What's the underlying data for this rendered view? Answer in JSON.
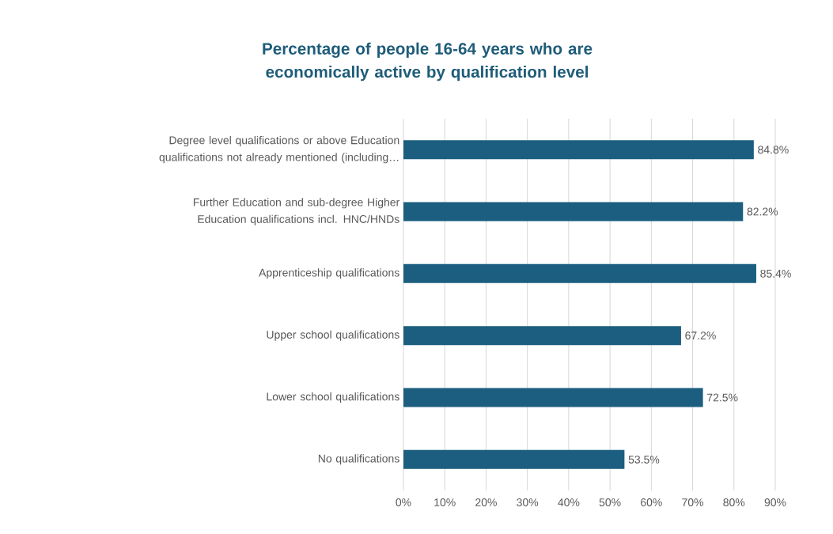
{
  "chart_data": {
    "type": "bar",
    "orientation": "horizontal",
    "title": "Percentage of people 16-64 years who are economically active by qualification level",
    "categories": [
      "Degree level qualifications or above Education qualifications not already mentioned (including…",
      "Further Education and sub-degree Higher Education qualifications incl. HNC/HNDs",
      "Apprenticeship qualifications",
      "Upper school qualifications",
      "Lower school qualifications",
      "No qualifications"
    ],
    "values": [
      84.8,
      82.2,
      85.4,
      67.2,
      72.5,
      53.5
    ],
    "value_labels": [
      "84.8%",
      "82.2%",
      "85.4%",
      "67.2%",
      "72.5%",
      "53.5%"
    ],
    "color": "#1b5e7f",
    "xlim": [
      0,
      90
    ],
    "xticks": [
      {
        "value": 0,
        "label": "0%"
      },
      {
        "value": 10,
        "label": "10%"
      },
      {
        "value": 20,
        "label": "20%"
      },
      {
        "value": 30,
        "label": "30%"
      },
      {
        "value": 40,
        "label": "40%"
      },
      {
        "value": 50,
        "label": "50%"
      },
      {
        "value": 60,
        "label": "60%"
      },
      {
        "value": 70,
        "label": "70%"
      },
      {
        "value": 80,
        "label": "80%"
      },
      {
        "value": 90,
        "label": "90%"
      }
    ],
    "grid": "x"
  }
}
